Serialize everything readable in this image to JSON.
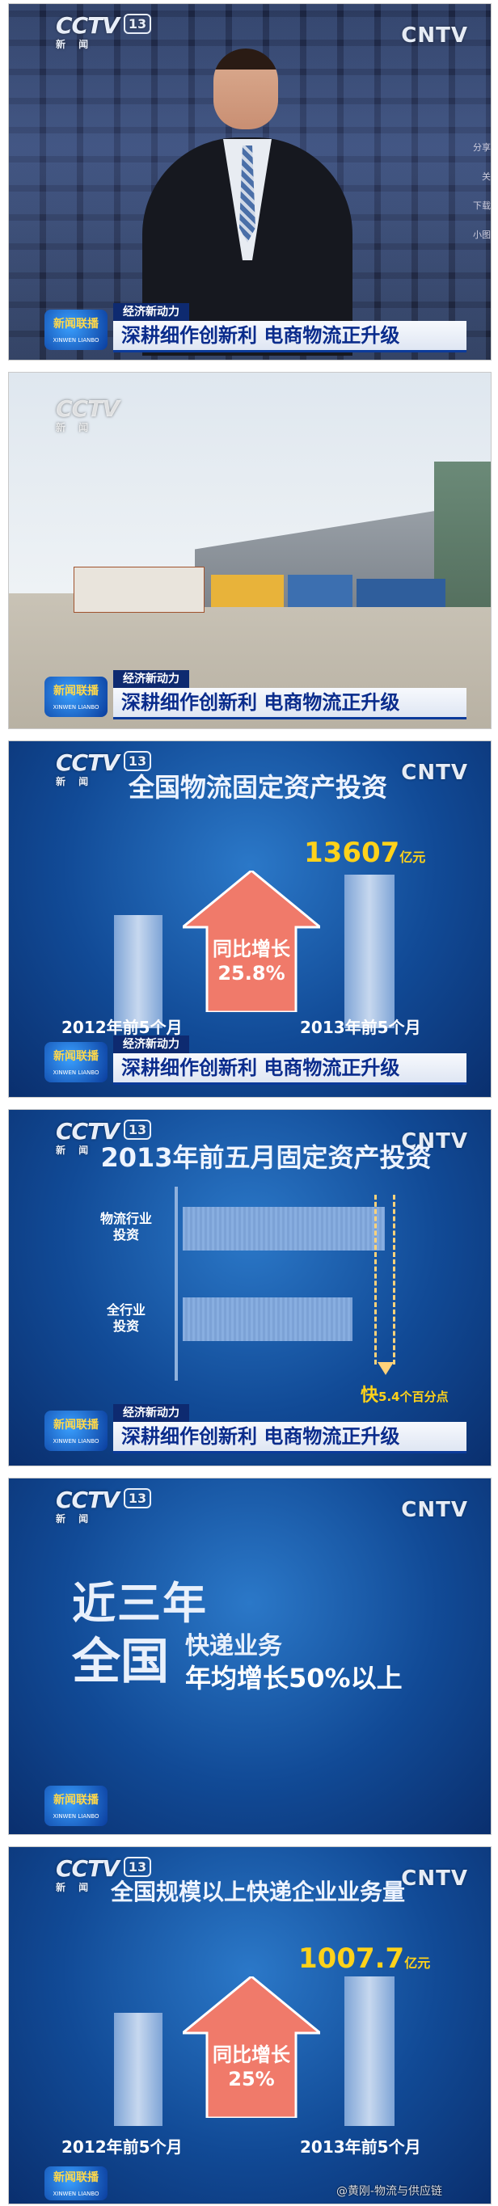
{
  "caption": {
    "tag": "经济新动力",
    "headline": "深耕细作创新利 电商物流正升级"
  },
  "branding": {
    "cctv": "CCTV",
    "channel": "13",
    "channel_sub": "新 闻",
    "cntv": "CNTV",
    "xwlb": "新闻联播",
    "xwlb_sub": "XINWEN LIANBO"
  },
  "frame1": {
    "side_labels": [
      "分享",
      "关",
      "下载",
      "小图"
    ]
  },
  "frame3": {
    "title": "全国物流固定资产投资",
    "value": "13607",
    "unit": "亿元",
    "growth_label": "同比增长",
    "growth_value": "25.8%",
    "x_left": "2012年前5个月",
    "x_right": "2013年前5个月"
  },
  "frame4": {
    "title": "2013年前五月固定资产投资",
    "bar1_label_1": "物流行业",
    "bar1_label_2": "投资",
    "bar2_label_1": "全行业",
    "bar2_label_2": "投资",
    "diff_prefix": "快",
    "diff_value": "5.4个百分点"
  },
  "frame5": {
    "line1": "近三年",
    "line2": "全国",
    "line2b": "快递业务",
    "line3": "年均增长50%以上"
  },
  "frame6": {
    "title": "全国规模以上快递企业业务量",
    "value": "1007.7",
    "unit": "亿元",
    "growth_label": "同比增长",
    "growth_value": "25%",
    "x_left": "2012年前5个月",
    "x_right": "2013年前5个月"
  },
  "watermark": "@黄刚-物流与供应链",
  "chart_data": [
    {
      "type": "bar",
      "title": "全国物流固定资产投资",
      "categories": [
        "2012年前5个月",
        "2013年前5个月"
      ],
      "values": [
        null,
        13607
      ],
      "unit": "亿元",
      "annotation": "同比增长 25.8%"
    },
    {
      "type": "bar",
      "title": "2013年前五月固定资产投资",
      "categories": [
        "物流行业投资",
        "全行业投资"
      ],
      "annotation": "快5.4个百分点"
    },
    {
      "type": "bar",
      "title": "全国规模以上快递企业业务量",
      "categories": [
        "2012年前5个月",
        "2013年前5个月"
      ],
      "values": [
        null,
        1007.7
      ],
      "unit": "亿元",
      "annotation": "同比增长 25%"
    }
  ],
  "colors": {
    "accent_yellow": "#ffd21a",
    "arrow_red": "#f07a6a",
    "caption_blue": "#0a2c8c"
  }
}
